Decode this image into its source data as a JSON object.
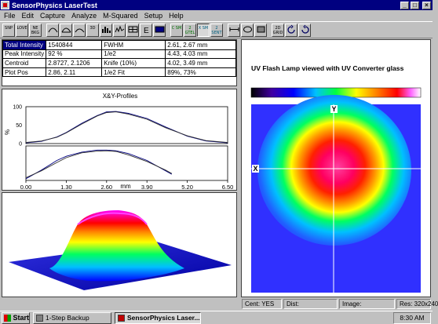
{
  "window": {
    "title": "SensorPhysics LaserTest",
    "minimize": "_",
    "maximize": "□",
    "close": "×"
  },
  "menu": [
    "File",
    "Edit",
    "Capture",
    "Analyze",
    "M-Squared",
    "Setup",
    "Help"
  ],
  "toolbar": [
    "SNP",
    "LOVE",
    "NE BKG",
    "",
    "",
    "",
    "3D",
    "",
    "",
    "",
    "",
    "",
    "C SM",
    "2 GTEL",
    "X SM",
    "2 SENT",
    "",
    "",
    "",
    "2D GRID",
    "",
    ""
  ],
  "measurements": [
    {
      "label": "Total Intensity",
      "value": "1540844",
      "method": "FWHM",
      "result": "2.61, 2.67 mm"
    },
    {
      "label": "Peak Intensity",
      "value": "92 %",
      "method": "1/e2",
      "result": "4.43, 4.03 mm"
    },
    {
      "label": "Centroid",
      "value": "2.8727, 2.1206",
      "method": "Knife (10%)",
      "result": "4.02, 3.49 mm"
    },
    {
      "label": "Plot Pos",
      "value": "2.86, 2.11",
      "method": "1/e2 Fit",
      "result": "89%, 73%"
    }
  ],
  "profiles": {
    "title": "X&Y-Profiles",
    "ylabel": "%",
    "xlabel": "mm",
    "xticks": [
      "0.00",
      "1.30",
      "2.60",
      "3.90",
      "5.20",
      "6.50"
    ],
    "yticks": [
      "0",
      "50",
      "100"
    ]
  },
  "image": {
    "title": "UV Flash Lamp viewed with UV Converter glass",
    "x_marker": "X",
    "y_marker": "Y"
  },
  "status": {
    "cent": "Cent: YES",
    "dist": "Dist:",
    "image": "Image:",
    "res": "Res: 320x240"
  },
  "taskbar": {
    "start": "Start",
    "task1": "1-Step Backup",
    "task2": "SensorPhysics Laser...",
    "clock": "8:30 AM"
  },
  "chart_data": {
    "type": "line",
    "title": "X&Y-Profiles",
    "xlabel": "mm",
    "ylabel": "%",
    "xlim": [
      0,
      6.5
    ],
    "ylim": [
      0,
      100
    ],
    "series": [
      {
        "x": [
          0.0,
          0.5,
          1.0,
          1.3,
          1.8,
          2.3,
          2.6,
          2.9,
          3.3,
          3.9,
          4.5,
          5.2,
          5.8,
          6.5
        ],
        "values": [
          2,
          6,
          18,
          30,
          55,
          76,
          86,
          87,
          82,
          68,
          45,
          20,
          7,
          2
        ]
      },
      {
        "x": [
          0.0,
          0.5,
          1.0,
          1.3,
          1.8,
          2.3,
          2.6,
          2.9,
          3.3,
          3.9,
          4.5,
          5.2,
          5.8,
          6.5
        ],
        "values": [
          3,
          7,
          17,
          29,
          53,
          75,
          84,
          86,
          80,
          66,
          43,
          21,
          8,
          3
        ]
      },
      {
        "x": [
          0.0,
          0.5,
          1.0,
          1.3,
          1.8,
          2.3,
          2.6,
          2.9,
          3.3,
          3.9,
          4.5,
          4.7
        ],
        "values": [
          5,
          30,
          58,
          70,
          82,
          88,
          88,
          86,
          78,
          58,
          28,
          18
        ]
      },
      {
        "x": [
          0.0,
          0.5,
          1.0,
          1.3,
          1.8,
          2.3,
          2.6,
          2.9,
          3.3,
          3.9,
          4.5,
          4.7
        ],
        "values": [
          8,
          28,
          52,
          66,
          80,
          85,
          86,
          84,
          74,
          55,
          30,
          20
        ]
      }
    ]
  }
}
